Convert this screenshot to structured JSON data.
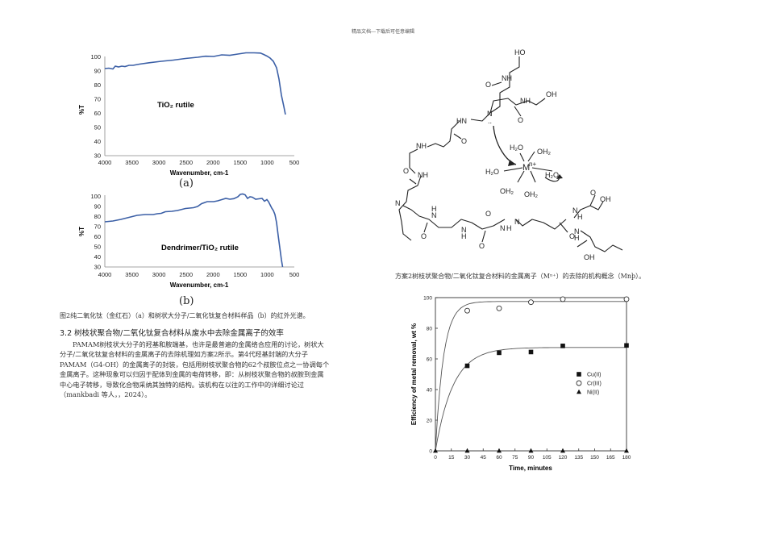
{
  "header": "精品文档---下载后可任意编辑",
  "figures": {
    "ir_a": {
      "label": "TiO₂ rutile",
      "panel": "(a)",
      "ylabel": "%T",
      "xlabel": "Wavenumber, cm-1",
      "yticks": [
        "100",
        "90",
        "80",
        "70",
        "60",
        "50",
        "40",
        "30"
      ],
      "xticks": [
        "4000",
        "3500",
        "3000",
        "2500",
        "2000",
        "1500",
        "1000",
        "500"
      ]
    },
    "ir_b": {
      "label": "Dendrimer/TiO₂ rutile",
      "panel": "(b)",
      "ylabel": "%T",
      "xlabel": "Wavenumber, cm-1",
      "yticks": [
        "100",
        "90",
        "80",
        "70",
        "60",
        "50",
        "40",
        "30"
      ],
      "xticks": [
        "4000",
        "3500",
        "3000",
        "2500",
        "2000",
        "1500",
        "1000",
        "500"
      ]
    },
    "fig2_caption": "图2纯二氧化钛（金红石）（a）和树状大分子/二氧化钛复合材料样品（b）的红外光谱。",
    "scheme_caption": "方案2树枝状聚合物/二氧化钛复合材料的金属离子（Mⁿ⁺）的去除的机构概念（Mnþ）。",
    "scheme": {
      "atoms": {
        "ho1": "HO",
        "nh1": "NH",
        "o1": "O",
        "nh2": "NH",
        "oh2": "OH",
        "n_center": "N",
        "o2": "O",
        "hn1": "HN",
        "lone_pair": "..",
        "o3": "O",
        "nh3": "NH",
        "o4": "O",
        "nh4": "NH",
        "n_left": "N",
        "n_b1": "N",
        "h_b1": "H",
        "o_b1": "O",
        "n_b2": "N",
        "h_b2": "H",
        "o_b2": "O",
        "n_b3": "N",
        "h_b3": "H",
        "n_b4": "N",
        "o_b4": "O",
        "n_b5": "N",
        "h_b5": "H",
        "oh_b5": "OH",
        "o_b6": "O",
        "n_b6": "N",
        "h_b6": "H",
        "oh_b6": "OH",
        "o_b3": "O",
        "metal": "M",
        "metal_charge": "n+",
        "w1": "H₂O",
        "w2": "OH₂",
        "w3": "H₂O",
        "w4": "H₂O",
        "w5": "OH₂",
        "w6": "OH₂"
      }
    }
  },
  "section": {
    "heading": "3.2  树枝状聚合物/二氧化钛复合材料从废水中去除金属离子的效率",
    "lines": [
      "PAMAM树枝状大分子的羟基和胺端基，也许是最普遍的金属络合应用的讨论，树状大",
      "分子/二氧化钛复合材料的金属离子的去除机理如方案2所示。第4代羟基封端的大分子",
      "PAMAM（G4-OH）的金属离子的封装，包括用树枝状聚合物的62个叔胺位点之一协调每个",
      "金属离子。这种现象可以归因于配体到金属的电荷转移，即：从树枝状聚合物的叔胺到金属",
      "中心电子转移，导致化合物采纳其独特的结构。该机构在以往的工作中的详细讨论过",
      "（mankbadi 等人，，2024）。"
    ]
  },
  "chart_data": {
    "type": "scatter",
    "xlabel": "Time, minutes",
    "ylabel": "Efficiency of metal removal, wt %",
    "xlim": [
      0,
      180
    ],
    "ylim": [
      0,
      100
    ],
    "xticks": [
      0,
      15,
      30,
      45,
      60,
      75,
      90,
      105,
      120,
      135,
      150,
      165,
      180
    ],
    "yticks": [
      0,
      20,
      40,
      60,
      80,
      100
    ],
    "grid": false,
    "legend_position": "center-right",
    "series": [
      {
        "name": "Cu(II)",
        "marker": "square",
        "x": [
          0,
          30,
          60,
          90,
          120,
          180
        ],
        "y": [
          0,
          55.5,
          64,
          64.5,
          68.5,
          68.8
        ],
        "fit_k": 0.06,
        "fit_max": 67.5
      },
      {
        "name": "Cr(III)",
        "marker": "circle",
        "x": [
          0,
          30,
          60,
          90,
          120,
          180
        ],
        "y": [
          0,
          91.5,
          93,
          97,
          99,
          99
        ],
        "fit_k": 0.13,
        "fit_max": 97.5
      },
      {
        "name": "Ni(II)",
        "marker": "triangle",
        "x": [
          0,
          30,
          60,
          90,
          120,
          180
        ],
        "y": [
          0,
          0,
          0,
          0,
          0,
          0
        ]
      }
    ]
  }
}
